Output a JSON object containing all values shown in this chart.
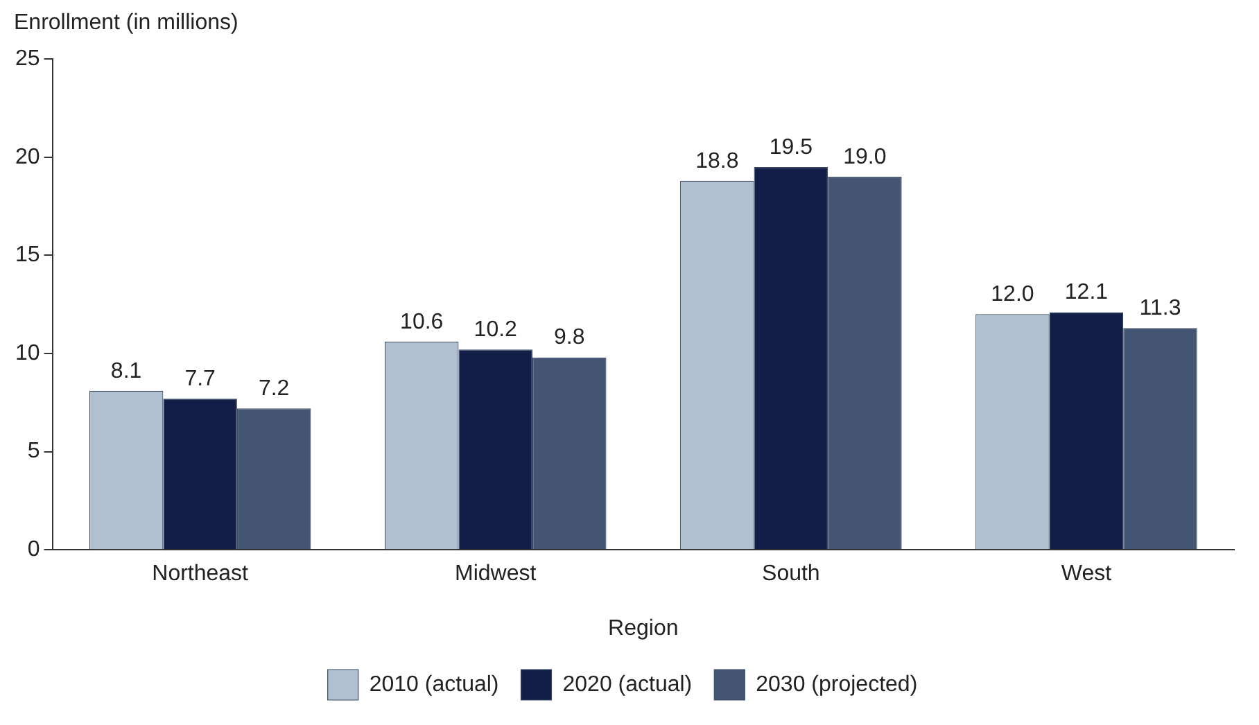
{
  "chart_data": {
    "type": "bar",
    "ylabel": "Enrollment (in millions)",
    "xlabel": "Region",
    "categories": [
      "Northeast",
      "Midwest",
      "South",
      "West"
    ],
    "series": [
      {
        "name": "2010 (actual)",
        "color": "#b0c0d0",
        "values": [
          8.1,
          10.6,
          18.8,
          12.0
        ],
        "value_labels": [
          "8.1",
          "10.6",
          "18.8",
          "12.0"
        ]
      },
      {
        "name": "2020 (actual)",
        "color": "#121e48",
        "values": [
          7.7,
          10.2,
          19.5,
          12.1
        ],
        "value_labels": [
          "7.7",
          "10.2",
          "19.5",
          "12.1"
        ]
      },
      {
        "name": "2030 (projected)",
        "color": "#435573",
        "values": [
          7.2,
          9.8,
          19.0,
          11.3
        ],
        "value_labels": [
          "7.2",
          "9.8",
          "19.0",
          "11.3"
        ]
      }
    ],
    "ylim": [
      0,
      25
    ],
    "yticks": [
      0,
      5,
      10,
      15,
      20,
      25
    ],
    "grid": false,
    "legend": "bottom"
  }
}
